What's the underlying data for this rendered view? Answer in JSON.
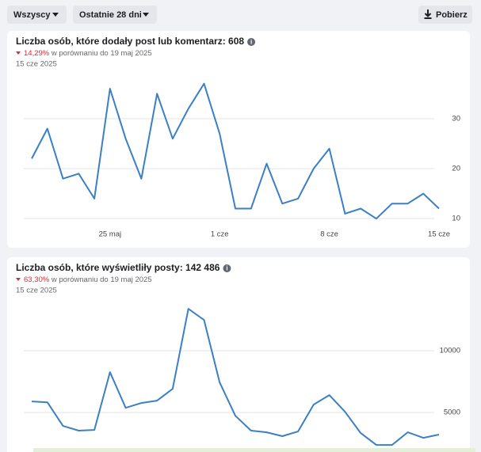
{
  "toolbar": {
    "audience": "Wszyscy",
    "range": "Ostatnie 28 dni",
    "download": "Pobierz"
  },
  "chart_data": [
    {
      "type": "line",
      "title": "Liczba osób, które dodały post lub komentarz: 608",
      "change": "14,29%",
      "comparison": "w porównaniu do 19 maj 2025",
      "date": "15 cze 2025",
      "categories": [
        null,
        null,
        null,
        null,
        null,
        "25 maj",
        null,
        null,
        null,
        null,
        null,
        null,
        "1 cze",
        null,
        null,
        null,
        null,
        null,
        null,
        "8 cze",
        null,
        null,
        null,
        null,
        null,
        null,
        "15 cze"
      ],
      "values": [
        22,
        28,
        18,
        19,
        14,
        36,
        26,
        18,
        35,
        26,
        32,
        37,
        27,
        12,
        12,
        21,
        13,
        14,
        20,
        24,
        11,
        12,
        10,
        13,
        13,
        15,
        12
      ],
      "color": "#3b7fc4",
      "ylim": [
        8.6,
        38.7
      ],
      "yticks": [
        10,
        20,
        30
      ],
      "grid": true
    },
    {
      "type": "line",
      "title": "Liczba osób, które wyświetliły posty: 142 486",
      "change": "63,30%",
      "comparison": "w porównaniu do 19 maj 2025",
      "date": "15 cze 2025",
      "values": [
        5900,
        5830,
        3910,
        3530,
        3590,
        8270,
        5380,
        5770,
        5960,
        6920,
        13400,
        12500,
        7440,
        4740,
        3530,
        3400,
        3080,
        3460,
        5640,
        6410,
        5060,
        3330,
        2370,
        2370,
        3400,
        2950,
        3210
      ],
      "color": "#3b7fc4",
      "ylim": [
        1800,
        14500
      ],
      "yticks": [
        5000,
        10000
      ],
      "grid": true
    }
  ]
}
